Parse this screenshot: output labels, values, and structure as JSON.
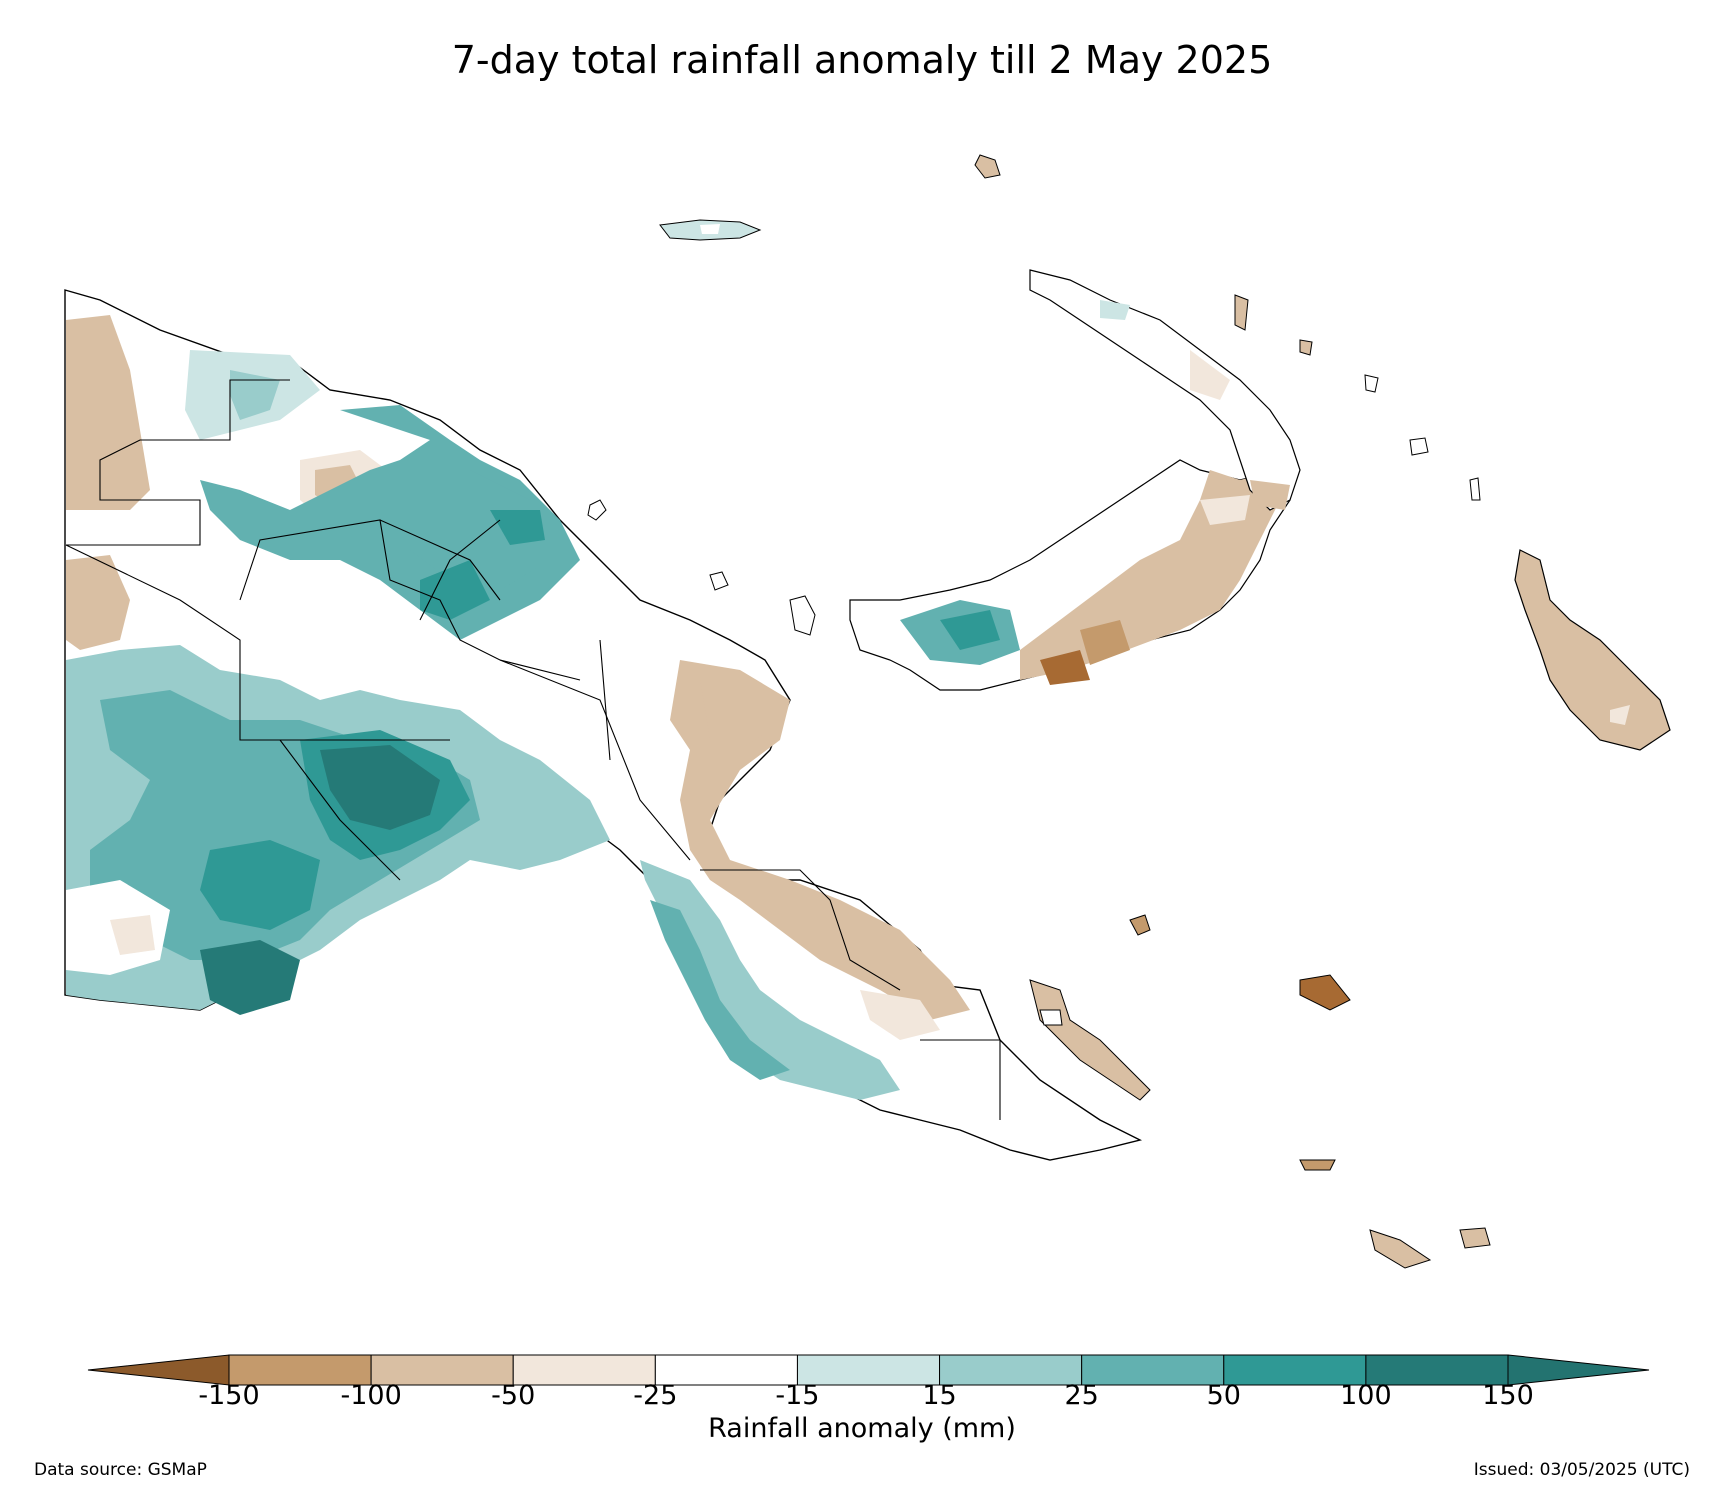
{
  "title": "7-day total rainfall anomaly till 2 May 2025",
  "colorbar": {
    "label": "Rainfall anomaly (mm)",
    "ticks": [
      "-150",
      "-100",
      "-50",
      "-25",
      "-15",
      "15",
      "25",
      "50",
      "100",
      "150"
    ],
    "colors": [
      "#a76a33",
      "#c49a6c",
      "#d9bfa3",
      "#f2e7dc",
      "#ffffff",
      "#cce5e4",
      "#99cccb",
      "#62b1b0",
      "#2f9995",
      "#257a77"
    ],
    "extend_low_color": "#8c5a2b",
    "extend_high_color": "#237370"
  },
  "footer": {
    "source": "Data source: GSMaP",
    "issued": "Issued: 03/05/2025 (UTC)"
  }
}
